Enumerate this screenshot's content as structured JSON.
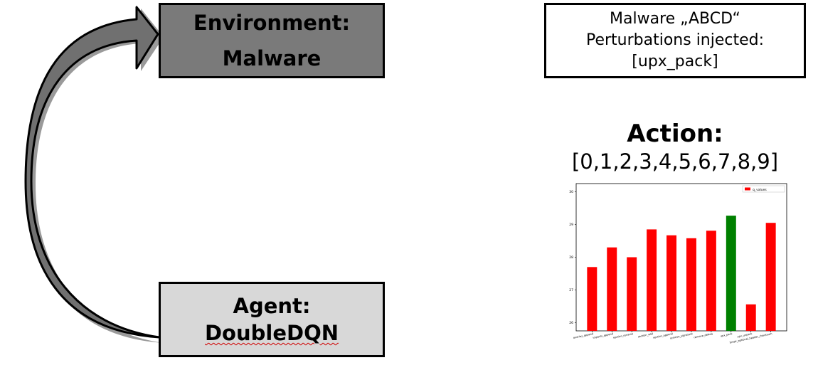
{
  "environment": {
    "line1": "Environment:",
    "line2": "Malware"
  },
  "agent": {
    "line1": "Agent:",
    "line2": "DoubleDQN"
  },
  "info": {
    "line1": "Malware „ABCD“",
    "line2": "Perturbations injected:",
    "line3": "[upx_pack]"
  },
  "action": {
    "title": "Action:",
    "list": "[0,1,2,3,4,5,6,7,8,9]"
  },
  "chart_data": {
    "type": "bar",
    "legend": "q_values",
    "legend_position": "top-right",
    "categories": [
      "overlay_append",
      "imports_append",
      "section_rename",
      "section_add",
      "section_append",
      "remove_signature",
      "remove_debug",
      "upx_pack",
      "upx_unpack",
      "break_optional_header_checksum"
    ],
    "values": [
      27.7,
      28.3,
      28.0,
      28.85,
      28.67,
      28.58,
      28.81,
      29.27,
      26.56,
      29.05
    ],
    "colors": [
      "#ff0000",
      "#ff0000",
      "#ff0000",
      "#ff0000",
      "#ff0000",
      "#ff0000",
      "#ff0000",
      "#008000",
      "#ff0000",
      "#ff0000"
    ],
    "yticks": [
      26,
      27,
      28,
      29,
      30
    ],
    "ylim": [
      25.75,
      30.25
    ]
  }
}
